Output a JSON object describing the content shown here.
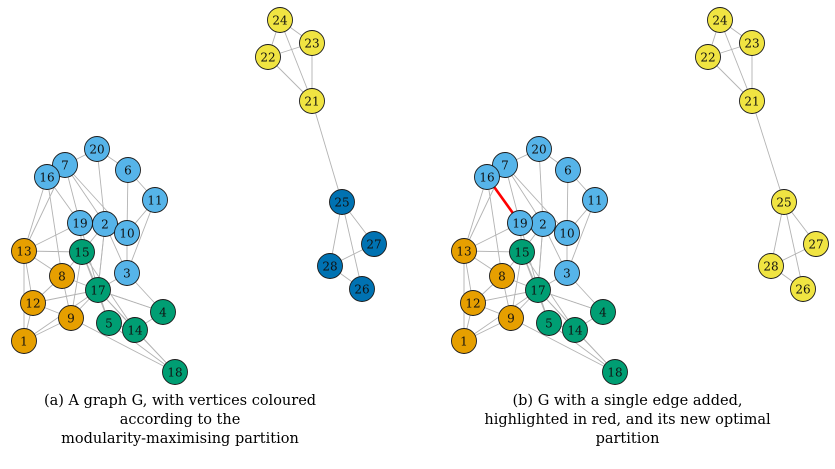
{
  "colors": {
    "orange": "#E69F00",
    "green": "#009E73",
    "light_blue": "#56B4E9",
    "dark_blue": "#0072B2",
    "yellow": "#F0E442",
    "edge": "#b3b3b3",
    "added_edge": "#ff0000",
    "label": "#111111"
  },
  "edges": [
    [
      1,
      12
    ],
    [
      1,
      9
    ],
    [
      1,
      13
    ],
    [
      12,
      13
    ],
    [
      12,
      8
    ],
    [
      12,
      9
    ],
    [
      8,
      9
    ],
    [
      8,
      13
    ],
    [
      8,
      15
    ],
    [
      8,
      17
    ],
    [
      8,
      16
    ],
    [
      9,
      17
    ],
    [
      9,
      15
    ],
    [
      13,
      15
    ],
    [
      13,
      19
    ],
    [
      13,
      16
    ],
    [
      15,
      17
    ],
    [
      15,
      5
    ],
    [
      15,
      14
    ],
    [
      15,
      19
    ],
    [
      15,
      2
    ],
    [
      17,
      5
    ],
    [
      17,
      14
    ],
    [
      17,
      4
    ],
    [
      17,
      18
    ],
    [
      17,
      3
    ],
    [
      17,
      2
    ],
    [
      5,
      14
    ],
    [
      14,
      4
    ],
    [
      4,
      3
    ],
    [
      4,
      17
    ],
    [
      5,
      18
    ],
    [
      14,
      18
    ],
    [
      16,
      7
    ],
    [
      16,
      19
    ],
    [
      7,
      19
    ],
    [
      7,
      2
    ],
    [
      7,
      20
    ],
    [
      7,
      10
    ],
    [
      7,
      13
    ],
    [
      20,
      2
    ],
    [
      20,
      6
    ],
    [
      6,
      11
    ],
    [
      6,
      10
    ],
    [
      11,
      10
    ],
    [
      10,
      2
    ],
    [
      10,
      3
    ],
    [
      19,
      2
    ],
    [
      2,
      3
    ],
    [
      3,
      11
    ],
    [
      2,
      17
    ],
    [
      19,
      17
    ],
    [
      12,
      17
    ],
    [
      1,
      17
    ],
    [
      9,
      18
    ],
    [
      21,
      22
    ],
    [
      21,
      23
    ],
    [
      21,
      24
    ],
    [
      22,
      23
    ],
    [
      22,
      24
    ],
    [
      23,
      24
    ],
    [
      21,
      25
    ],
    [
      25,
      26
    ],
    [
      25,
      27
    ],
    [
      25,
      28
    ],
    [
      26,
      28
    ],
    [
      27,
      28
    ]
  ],
  "added_edge": [
    16,
    19
  ],
  "panels": [
    {
      "id": "a",
      "groups": {
        "1": "orange",
        "8": "orange",
        "9": "orange",
        "12": "orange",
        "13": "orange",
        "4": "green",
        "5": "green",
        "14": "green",
        "15": "green",
        "17": "green",
        "18": "green",
        "2": "light_blue",
        "3": "light_blue",
        "6": "light_blue",
        "7": "light_blue",
        "10": "light_blue",
        "11": "light_blue",
        "16": "light_blue",
        "19": "light_blue",
        "20": "light_blue",
        "25": "dark_blue",
        "26": "dark_blue",
        "27": "dark_blue",
        "28": "dark_blue",
        "21": "yellow",
        "22": "yellow",
        "23": "yellow",
        "24": "yellow"
      },
      "caption_lines": [
        "(a) A graph G, with vertices coloured",
        "according to the",
        "modularity-maximising partition"
      ]
    },
    {
      "id": "b",
      "groups": {
        "1": "orange",
        "8": "orange",
        "9": "orange",
        "12": "orange",
        "13": "orange",
        "4": "green",
        "5": "green",
        "14": "green",
        "15": "green",
        "17": "green",
        "18": "green",
        "2": "light_blue",
        "3": "light_blue",
        "6": "light_blue",
        "7": "light_blue",
        "10": "light_blue",
        "11": "light_blue",
        "16": "light_blue",
        "19": "light_blue",
        "20": "light_blue",
        "25": "yellow",
        "26": "yellow",
        "27": "yellow",
        "28": "yellow",
        "21": "yellow",
        "22": "yellow",
        "23": "yellow",
        "24": "yellow"
      },
      "caption_lines": [
        "(b) G with a single edge added,",
        "highlighted in red, and its new optimal",
        "partition"
      ]
    }
  ]
}
